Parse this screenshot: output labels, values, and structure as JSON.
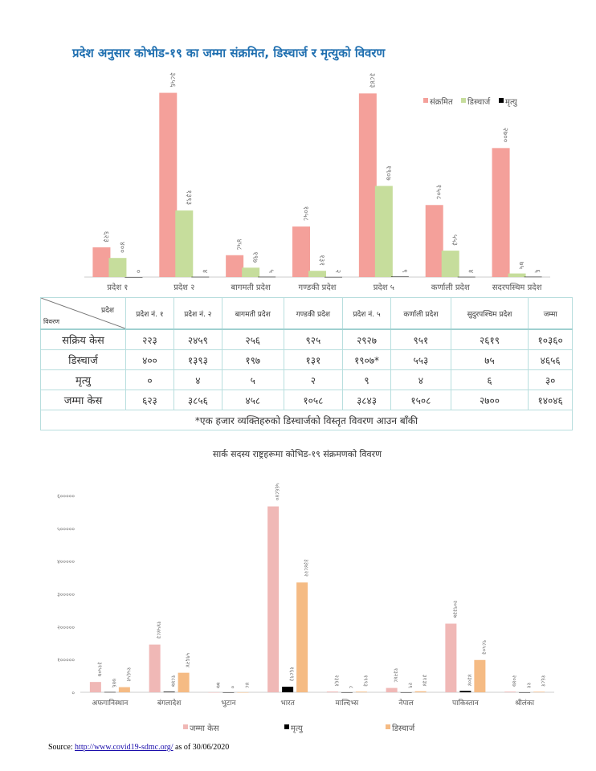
{
  "chart_data": [
    {
      "type": "bar",
      "title": "प्रदेश अनुसार कोभीड-१९ का जम्मा संक्रमित, डिस्चार्ज र मृत्युको विवरण",
      "categories": [
        "प्रदेश १",
        "प्रदेश २",
        "बागमती प्रदेश",
        "गण्डकी प्रदेश",
        "प्रदेश ५",
        "कर्णाली प्रदेश",
        "सदरपस्चिम प्रदेश"
      ],
      "series": [
        {
          "name": "संक्रमित",
          "color": "#f4a09a",
          "values": [
            623,
            3856,
            458,
            1058,
            3843,
            1508,
            2700
          ]
        },
        {
          "name": "डिस्चार्ज",
          "color": "#c6dd9c",
          "values": [
            400,
            1393,
            197,
            131,
            1907,
            553,
            75
          ]
        },
        {
          "name": "मृत्यु",
          "color": "#000000",
          "values": [
            0,
            4,
            5,
            2,
            9,
            4,
            6
          ]
        }
      ],
      "legend": "top-right",
      "ylim": [
        0,
        4000
      ]
    },
    {
      "type": "bar",
      "title": "सार्क सदस्य राष्ट्रहरूमा कोभिड-१९ संक्रमणको विवरण",
      "categories": [
        "अफगानिस्थान",
        "बंगलादेश",
        "भुटान",
        "भारत",
        "माल्दिभ्स",
        "नेपाल",
        "पाकिस्तान",
        "श्रीलंका"
      ],
      "series": [
        {
          "name": "जम्मा केस",
          "color": "#f0b8b6",
          "values": [
            31507,
            145483,
            77,
            566840,
            2361,
            13248,
            209337,
            2047
          ]
        },
        {
          "name": "मृत्यु",
          "color": "#000000",
          "values": [
            746,
            1847,
            0,
            16893,
            8,
            29,
            4304,
            11
          ]
        },
        {
          "name": "डिस्चार्ज",
          "color": "#f5bb84",
          "values": [
            15651,
            59624,
            48,
            334822,
            1993,
            3134,
            98503,
            1681
          ]
        }
      ],
      "yticks": [
        0,
        100000,
        200000,
        300000,
        400000,
        500000,
        600000
      ],
      "ylim": [
        0,
        600000
      ],
      "legend": "bottom"
    }
  ],
  "table": {
    "corner_top": "प्रदेश",
    "corner_bottom": "विवरण",
    "headers": [
      "प्रदेश नं. १",
      "प्रदेश नं. २",
      "बागमती प्रदेश",
      "गण्डकी प्रदेश",
      "प्रदेश नं. ५",
      "कर्णाली प्रदेश",
      "सुदुरपश्चिम प्रदेश",
      "जम्मा"
    ],
    "rows": [
      {
        "label": "सक्रिय केस",
        "values": [
          "२२३",
          "२४५९",
          "२५६",
          "९२५",
          "२९२७",
          "९५१",
          "२६१९",
          "१०३६०"
        ]
      },
      {
        "label": "डिस्चार्ज",
        "values": [
          "४००",
          "१३९३",
          "१९७",
          "१३१",
          "१९०७*",
          "५५३",
          "७५",
          "४६५६"
        ]
      },
      {
        "label": "मृत्यु",
        "values": [
          "०",
          "४",
          "५",
          "२",
          "९",
          "४",
          "६",
          "३०"
        ]
      },
      {
        "label": "जम्मा केस",
        "values": [
          "६२३",
          "३८५६",
          "४५८",
          "१०५८",
          "३८४३",
          "१५०८",
          "२७००",
          "१४०४६"
        ]
      }
    ],
    "note": "*एक हजार व्यक्तिहरुको डिस्चार्जको विस्तृत विवरण आउन बाँकी"
  },
  "source": {
    "prefix": "Source: ",
    "link": "http://www.covid19-sdmc.org/",
    "suffix": " as of 30/06/2020"
  }
}
